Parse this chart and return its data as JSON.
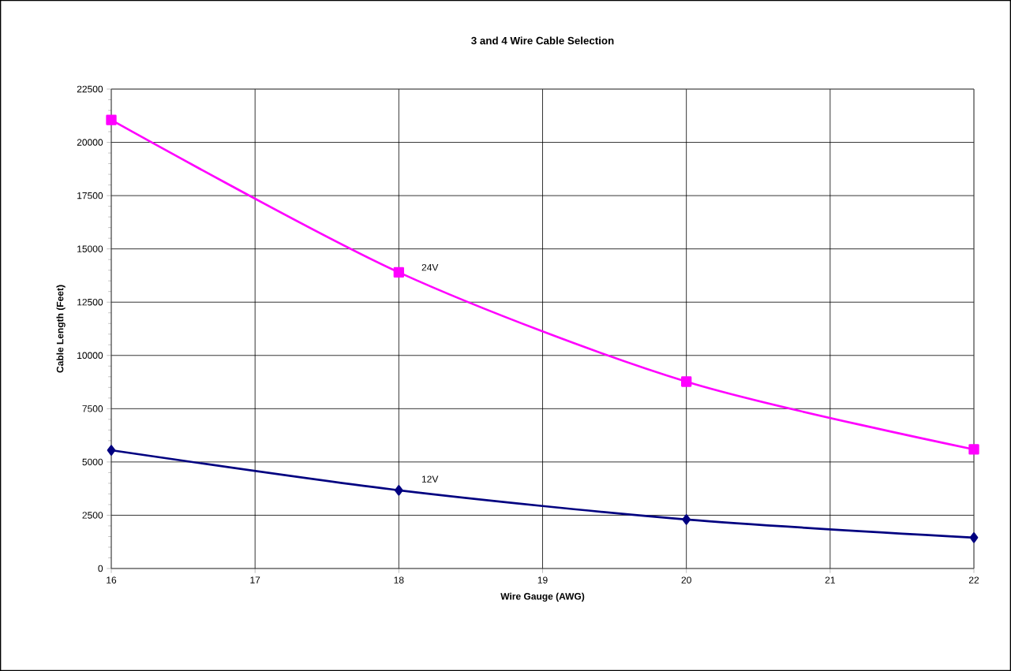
{
  "chart_data": {
    "type": "line",
    "title": "3 and 4 Wire Cable Selection",
    "xlabel": "Wire Gauge (AWG)",
    "ylabel": "Cable Length (Feet)",
    "x": [
      16,
      18,
      20,
      22
    ],
    "series": [
      {
        "name": "24V",
        "color": "#ff00ff",
        "marker": "square",
        "values": [
          21050,
          13900,
          8770,
          5590
        ]
      },
      {
        "name": "12V",
        "color": "#000080",
        "marker": "diamond",
        "values": [
          5550,
          3670,
          2300,
          1450
        ]
      }
    ],
    "xlim": [
      16,
      22
    ],
    "xticks": [
      16,
      17,
      18,
      19,
      20,
      21,
      22
    ],
    "ylim": [
      0,
      22500
    ],
    "yticks": [
      0,
      2500,
      5000,
      7500,
      10000,
      12500,
      15000,
      17500,
      20000,
      22500
    ],
    "grid": true,
    "line_style": "solid"
  }
}
